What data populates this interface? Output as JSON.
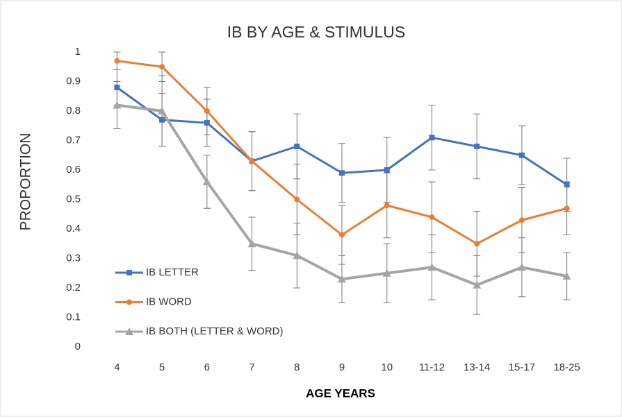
{
  "chart_data": {
    "type": "line",
    "title": "IB BY AGE & STIMULUS",
    "x_label": "AGE YEARS",
    "y_label": "PROPORTION",
    "categories": [
      "4",
      "5",
      "6",
      "7",
      "8",
      "9",
      "10",
      "11-12",
      "13-14",
      "15-17",
      "18-25"
    ],
    "series": [
      {
        "name": "IB LETTER",
        "color": "#4472c4",
        "marker": "square",
        "values": [
          0.88,
          0.77,
          0.76,
          0.63,
          0.68,
          0.59,
          0.6,
          0.71,
          0.68,
          0.65,
          0.55
        ],
        "errors": [
          0.06,
          0.09,
          0.08,
          0.1,
          0.11,
          0.1,
          0.11,
          0.11,
          0.11,
          0.1,
          0.09
        ]
      },
      {
        "name": "IB WORD",
        "color": "#ed7d31",
        "marker": "circle",
        "values": [
          0.97,
          0.95,
          0.8,
          0.63,
          0.5,
          0.38,
          0.48,
          0.44,
          0.35,
          0.43,
          0.47
        ],
        "errors": [
          0.03,
          0.05,
          0.08,
          0.1,
          0.12,
          0.1,
          0.11,
          0.12,
          0.11,
          0.11,
          0.09
        ]
      },
      {
        "name": "IB BOTH (LETTER & WORD)",
        "color": "#a5a5a5",
        "marker": "triangle",
        "values": [
          0.82,
          0.8,
          0.56,
          0.35,
          0.31,
          0.23,
          0.25,
          0.27,
          0.21,
          0.27,
          0.24
        ],
        "errors": [
          0.08,
          0.12,
          0.09,
          0.09,
          0.11,
          0.08,
          0.1,
          0.11,
          0.1,
          0.1,
          0.08
        ]
      }
    ],
    "ylim": [
      0,
      1
    ],
    "yticks": [
      0,
      0.1,
      0.2,
      0.3,
      0.4,
      0.5,
      0.6,
      0.7,
      0.8,
      0.9,
      1
    ],
    "grid": false,
    "legend": "lower-left"
  }
}
